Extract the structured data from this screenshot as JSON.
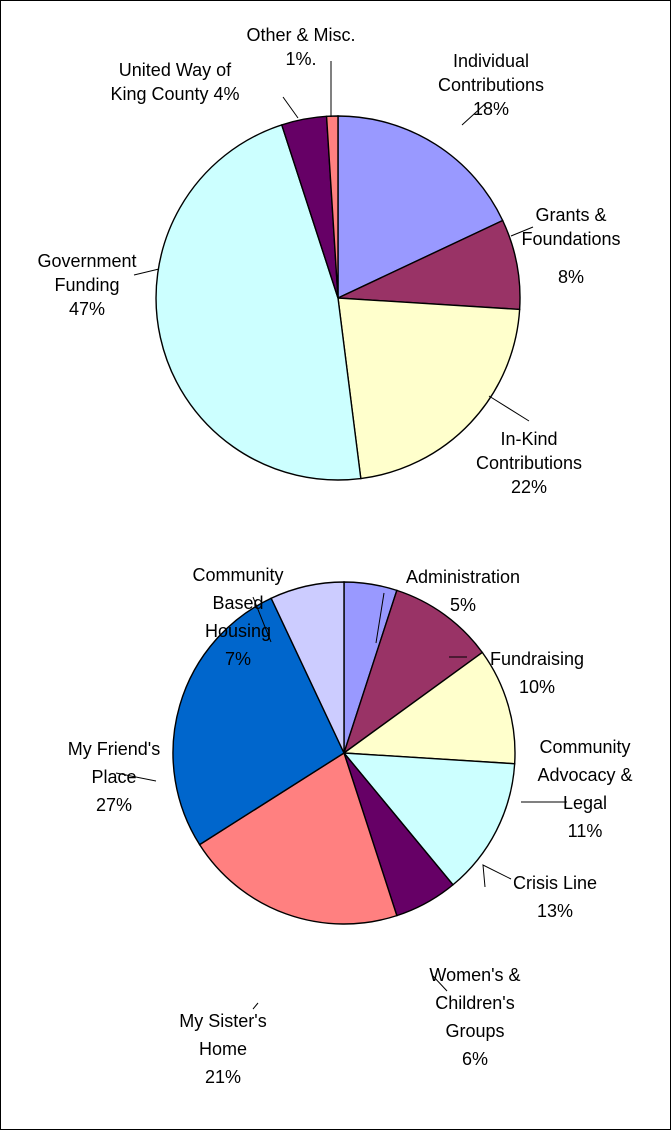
{
  "chart_data": [
    {
      "type": "pie",
      "title": "",
      "slices": [
        {
          "name": "Individual Contributions",
          "label_lines": [
            "Individual",
            "Contributions",
            "18%"
          ],
          "value": 18,
          "color": "#9999FF"
        },
        {
          "name": "Grants & Foundations",
          "label_lines": [
            "Grants &",
            "Foundations",
            "8%"
          ],
          "value": 8,
          "color": "#993366"
        },
        {
          "name": "In-Kind Contributions",
          "label_lines": [
            "In-Kind",
            "Contributions",
            "22%"
          ],
          "value": 22,
          "color": "#FFFFCC"
        },
        {
          "name": "Government Funding",
          "label_lines": [
            "Government",
            "Funding",
            "47%"
          ],
          "value": 47,
          "color": "#CCFFFF"
        },
        {
          "name": "United Way of King County",
          "label_lines": [
            "United Way of",
            "King County  4%"
          ],
          "value": 4,
          "color": "#660066"
        },
        {
          "name": "Other & Misc.",
          "label_lines": [
            "Other & Misc.",
            "1%."
          ],
          "value": 1,
          "color": "#FF8080"
        }
      ]
    },
    {
      "type": "pie",
      "title": "",
      "slices": [
        {
          "name": "Administration",
          "label_lines": [
            "Administration",
            "5%"
          ],
          "value": 5,
          "color": "#9999FF"
        },
        {
          "name": "Fundraising",
          "label_lines": [
            "Fundraising",
            "10%"
          ],
          "value": 10,
          "color": "#993366"
        },
        {
          "name": "Community Advocacy & Legal",
          "label_lines": [
            "Community",
            "Advocacy &",
            "Legal",
            "11%"
          ],
          "value": 11,
          "color": "#FFFFCC"
        },
        {
          "name": "Crisis Line",
          "label_lines": [
            "Crisis Line",
            "13%"
          ],
          "value": 13,
          "color": "#CCFFFF"
        },
        {
          "name": "Women's & Children's Groups",
          "label_lines": [
            "Women's &",
            "Children's",
            "Groups",
            "6%"
          ],
          "value": 6,
          "color": "#660066"
        },
        {
          "name": "My Sister's Home",
          "label_lines": [
            "My Sister's",
            "Home",
            "21%"
          ],
          "value": 21,
          "color": "#FF8080"
        },
        {
          "name": "My Friend's Place",
          "label_lines": [
            "My Friend's",
            "Place",
            "27%"
          ],
          "value": 27,
          "color": "#0066CC"
        },
        {
          "name": "Community Based Housing",
          "label_lines": [
            "Community",
            "Based",
            "Housing",
            "7%"
          ],
          "value": 7,
          "color": "#CCCCFF"
        }
      ]
    }
  ]
}
